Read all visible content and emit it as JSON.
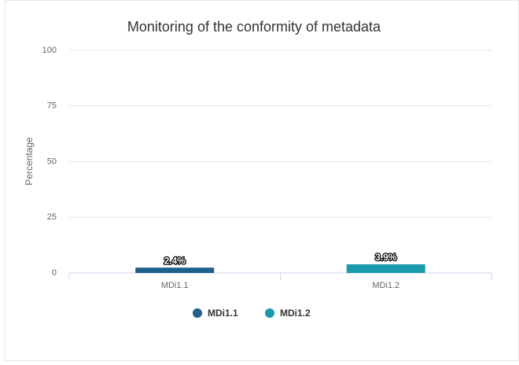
{
  "chart_data": {
    "type": "bar",
    "title": "Monitoring of the conformity of metadata",
    "y_label": "Percentage",
    "categories": [
      "MDi1.1",
      "MDi1.2"
    ],
    "series": [
      {
        "name": "MDi1.1",
        "color": "#1f5f8b",
        "values": [
          2.4,
          null
        ],
        "value_labels": [
          "2.4%",
          null
        ]
      },
      {
        "name": "MDi1.2",
        "color": "#1a9bab",
        "values": [
          null,
          3.9
        ],
        "value_labels": [
          null,
          "3.9%"
        ]
      }
    ],
    "ylim": [
      0,
      100
    ],
    "yticks": [
      0,
      25,
      50,
      75,
      100
    ],
    "grid": true,
    "legend": "bottom"
  }
}
